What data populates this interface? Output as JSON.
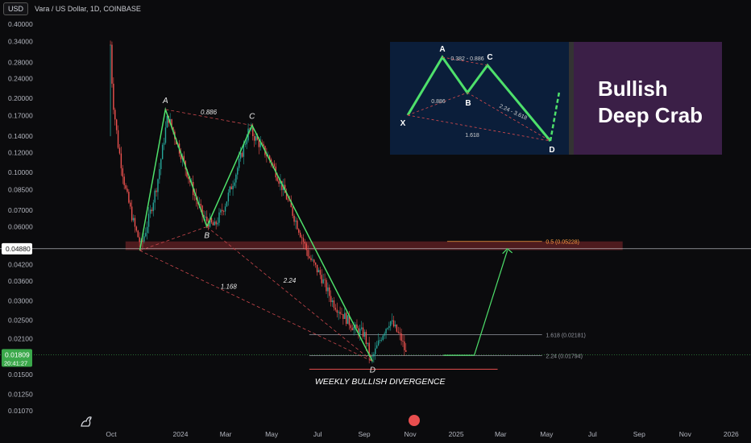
{
  "header": {
    "currency_label": "USD",
    "symbol_title": "Vara / US Dollar, 1D, COINBASE"
  },
  "price_badges": {
    "crosshair_price": "0.04880",
    "last_price": "0.01809",
    "countdown": "20:41:27"
  },
  "inset": {
    "title_line1": "Bullish",
    "title_line2": "Deep Crab",
    "points": [
      "X",
      "A",
      "B",
      "C",
      "D"
    ],
    "ratios": [
      "0.382 - 0.886",
      "0.886",
      "2.24 - 3.618",
      "1.618"
    ]
  },
  "annotations": {
    "weekly_divergence": "WEEKLY BULLISH DIVERGENCE"
  },
  "colors": {
    "bull": "#26a69a",
    "bear": "#ef5350",
    "pattern_green": "#4ee06b",
    "pattern_dashed": "#c9474c",
    "inset_purple": "#3b1f47",
    "inset_blue": "#0b1e3a",
    "badge_green": "#3aa84a"
  },
  "chart_data": {
    "type": "line",
    "title": "Vara / US Dollar, 1D, COINBASE",
    "xlabel": "",
    "ylabel": "",
    "log_scale": true,
    "grid": false,
    "ylim": [
      0.0095,
      0.42
    ],
    "x_ticks": [
      "Oct",
      "2024",
      "Mar",
      "May",
      "Jul",
      "Sep",
      "Nov",
      "2025",
      "Mar",
      "May",
      "Jul",
      "Sep",
      "Nov",
      "2026"
    ],
    "y_ticks": [
      "0.40000",
      "0.34000",
      "0.28000",
      "0.24000",
      "0.20000",
      "0.17000",
      "0.14000",
      "0.12000",
      "0.10000",
      "0.08500",
      "0.07000",
      "0.06000",
      "0.04200",
      "0.03600",
      "0.03000",
      "0.02500",
      "0.02100",
      "0.01500",
      "0.01250",
      "0.01070"
    ],
    "price_path": {
      "x": [
        "2023-09-30",
        "2023-10-03",
        "2023-10-10",
        "2023-10-20",
        "2023-11-01",
        "2023-11-10",
        "2023-11-20",
        "2023-12-01",
        "2023-12-15",
        "2024-01-01",
        "2024-01-20",
        "2024-02-01",
        "2024-02-15",
        "2024-03-01",
        "2024-03-15",
        "2024-04-01",
        "2024-04-15",
        "2024-05-01",
        "2024-05-20",
        "2024-06-05",
        "2024-06-20",
        "2024-07-05",
        "2024-07-20",
        "2024-08-05",
        "2024-08-20",
        "2024-09-01",
        "2024-09-10",
        "2024-09-25",
        "2024-10-05",
        "2024-10-20",
        "2024-10-28"
      ],
      "y": [
        0.33,
        0.2,
        0.13,
        0.085,
        0.06,
        0.05,
        0.065,
        0.09,
        0.17,
        0.12,
        0.08,
        0.065,
        0.06,
        0.075,
        0.1,
        0.15,
        0.13,
        0.11,
        0.08,
        0.06,
        0.045,
        0.038,
        0.03,
        0.026,
        0.023,
        0.022,
        0.017,
        0.022,
        0.025,
        0.021,
        0.0175
      ]
    },
    "harmonic_points": [
      {
        "label": "X",
        "x": "2023-11-08",
        "y": 0.048
      },
      {
        "label": "A",
        "x": "2023-12-12",
        "y": 0.18
      },
      {
        "label": "B",
        "x": "2024-02-05",
        "y": 0.06
      },
      {
        "label": "C",
        "x": "2024-04-05",
        "y": 0.155
      },
      {
        "label": "D",
        "x": "2024-09-12",
        "y": 0.017
      }
    ],
    "ratio_labels": [
      "0.886",
      "1.168",
      "2.24"
    ],
    "levels": [
      {
        "label": "0.5 (0.05228)",
        "value": 0.05228,
        "color": "#ff9f43"
      },
      {
        "label": "1.618 (0.02181)",
        "value": 0.02181,
        "color": "#9598a1"
      },
      {
        "label": "2.24 (0.01794)",
        "value": 0.01794,
        "color": "#9598a1"
      }
    ],
    "crosshair_value": 0.0488,
    "last_value": 0.01809,
    "projection": {
      "from_x": "2025-01-25",
      "from_y": 0.018,
      "to_x": "2025-03-10",
      "to_y": 0.0488
    }
  }
}
